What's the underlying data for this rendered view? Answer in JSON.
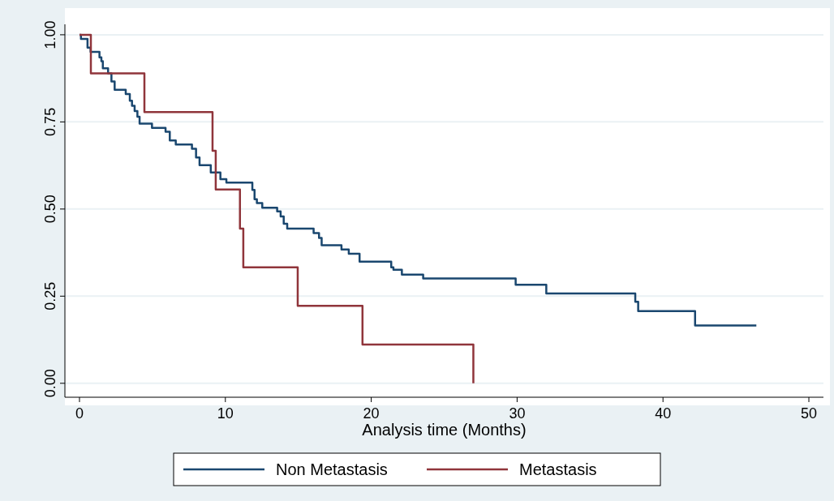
{
  "chart_data": {
    "type": "step",
    "xlabel": "Analysis time (Months)",
    "xlim": [
      -1,
      51
    ],
    "xticks": [
      0,
      10,
      20,
      30,
      40,
      50
    ],
    "ylim": [
      -0.04,
      1.03
    ],
    "yticks": [
      {
        "value": 0,
        "label": "0.00"
      },
      {
        "value": 0.25,
        "label": "0.25"
      },
      {
        "value": 0.5,
        "label": "0.50"
      },
      {
        "value": 0.75,
        "label": "0.75"
      },
      {
        "value": 1,
        "label": "1.00"
      }
    ],
    "grid": "y",
    "legend": "bottom",
    "marker": "none",
    "line_style": "solid",
    "series": [
      {
        "name": "Non Metastasis",
        "color": "#1a476f",
        "x": [
          0,
          0.1,
          0.55,
          0.76,
          1.37,
          1.5,
          1.6,
          1.96,
          2.19,
          2.41,
          3.17,
          3.45,
          3.6,
          3.78,
          3.97,
          4.12,
          4.97,
          5.9,
          6.19,
          6.6,
          7.71,
          7.99,
          8.23,
          9.0,
          9.66,
          10.07,
          11.85,
          12.0,
          12.16,
          12.53,
          13.55,
          13.79,
          14.0,
          14.24,
          16.05,
          16.42,
          16.6,
          17.96,
          18.46,
          19.2,
          21.37,
          21.52,
          22.1,
          23.56,
          29.9,
          32.0,
          38.1,
          38.3,
          42.2,
          46.4
        ],
        "values": [
          1,
          0.988,
          0.963,
          0.951,
          0.935,
          0.924,
          0.904,
          0.889,
          0.866,
          0.842,
          0.83,
          0.811,
          0.796,
          0.781,
          0.765,
          0.745,
          0.733,
          0.722,
          0.697,
          0.685,
          0.673,
          0.648,
          0.626,
          0.605,
          0.586,
          0.576,
          0.555,
          0.528,
          0.517,
          0.504,
          0.493,
          0.479,
          0.458,
          0.444,
          0.431,
          0.417,
          0.396,
          0.384,
          0.372,
          0.349,
          0.333,
          0.326,
          0.312,
          0.301,
          0.283,
          0.258,
          0.234,
          0.207,
          0.166,
          0.166
        ]
      },
      {
        "name": "Metastasis",
        "color": "#90353b",
        "x": [
          0,
          0.78,
          4.45,
          9.12,
          9.34,
          11.0,
          11.23,
          14.96,
          19.4,
          27.0
        ],
        "values": [
          1,
          0.889,
          0.778,
          0.667,
          0.556,
          0.444,
          0.333,
          0.222,
          0.111,
          0
        ]
      }
    ]
  }
}
